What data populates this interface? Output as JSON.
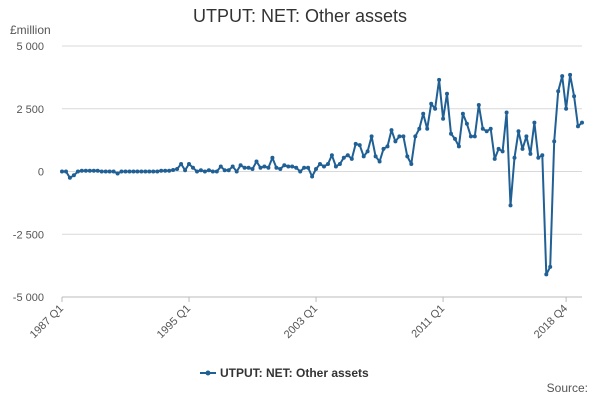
{
  "chart_data": {
    "type": "line",
    "title": "UTPUT: NET: Other assets",
    "ylabel": "£million",
    "xlabel": "",
    "source_label": "Source:",
    "ylim": [
      -5000,
      5000
    ],
    "y_ticks": [
      -5000,
      -2500,
      0,
      2500,
      5000
    ],
    "y_tick_labels": [
      "-5 000",
      "-2 500",
      "0",
      "2 500",
      "5 000"
    ],
    "x_tick_labels": [
      "1987 Q1",
      "1995 Q1",
      "2003 Q1",
      "2011 Q1",
      "2018 Q4"
    ],
    "x_tick_index": [
      0,
      32,
      64,
      96,
      127
    ],
    "grid": true,
    "legend_position": "bottom",
    "series": [
      {
        "name": "UTPUT: NET: Other assets",
        "color": "#206095",
        "values": [
          0,
          0,
          -250,
          -150,
          0,
          30,
          30,
          30,
          30,
          30,
          0,
          0,
          0,
          0,
          -80,
          0,
          0,
          0,
          0,
          0,
          0,
          0,
          0,
          0,
          0,
          30,
          30,
          30,
          60,
          100,
          300,
          50,
          300,
          150,
          0,
          50,
          0,
          50,
          0,
          0,
          200,
          50,
          50,
          200,
          0,
          250,
          150,
          150,
          100,
          400,
          150,
          200,
          150,
          550,
          150,
          100,
          250,
          200,
          200,
          150,
          0,
          150,
          150,
          -200,
          100,
          300,
          200,
          300,
          650,
          200,
          300,
          550,
          650,
          500,
          1100,
          1050,
          600,
          800,
          1400,
          600,
          400,
          900,
          1000,
          1650,
          1200,
          1400,
          1400,
          600,
          300,
          1400,
          1700,
          2300,
          1700,
          2700,
          2500,
          3650,
          2100,
          3100,
          1500,
          1300,
          1000,
          2300,
          1900,
          1400,
          1400,
          2650,
          1700,
          1600,
          1700,
          500,
          900,
          800,
          2350,
          -1350,
          550,
          1600,
          900,
          1400,
          700,
          1950,
          550,
          650,
          -4100,
          -3800,
          1200,
          3200,
          3800,
          2500,
          3850,
          3000,
          1800,
          1950
        ]
      }
    ]
  }
}
